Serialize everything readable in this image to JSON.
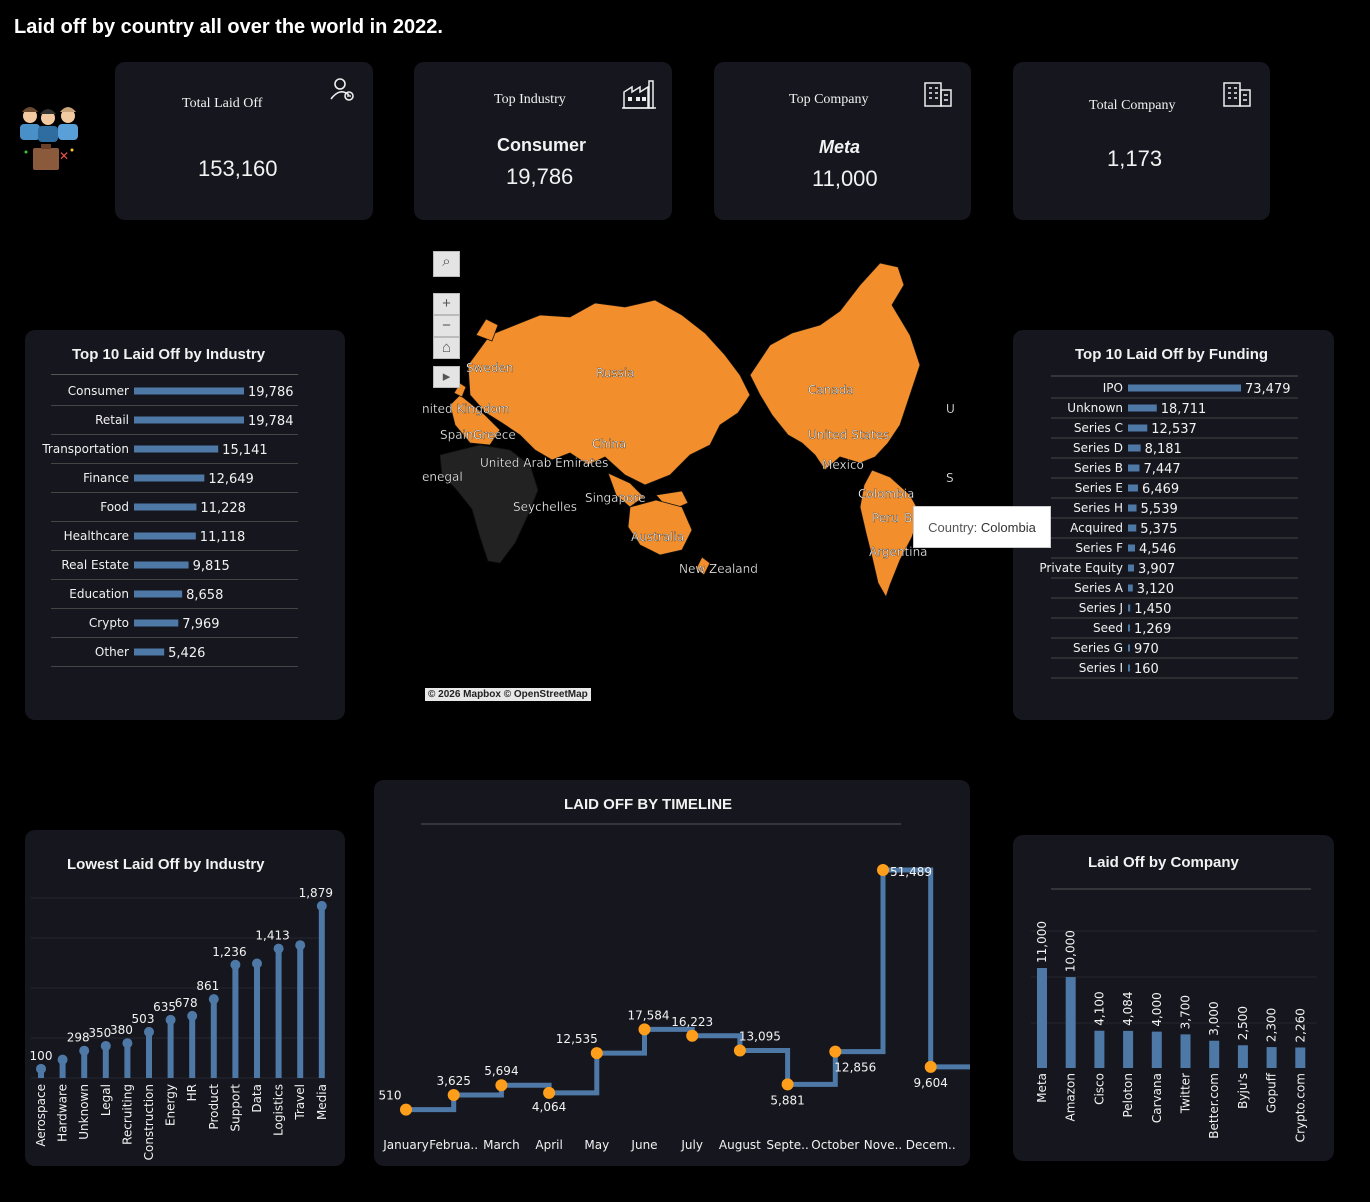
{
  "title": "Laid off by country all over the world in 2022.",
  "kpis": [
    {
      "label": "Total Laid Off",
      "sub": "",
      "value": "153,160",
      "icon": "person-icon"
    },
    {
      "label": "Top Industry",
      "sub": "Consumer",
      "value": "19,786",
      "icon": "factory-icon"
    },
    {
      "label": "Top Company",
      "sub": "Meta",
      "value": "11,000",
      "icon": "building-icon"
    },
    {
      "label": "Total Company",
      "sub": "",
      "value": "1,173",
      "icon": "building-icon"
    }
  ],
  "map": {
    "labels": [
      "Sweden",
      "Russia",
      "Canada",
      "nited Kingdom",
      "Spain",
      "Greece",
      "China",
      "United States",
      "United Arab Emirates",
      "Mexico",
      "enegal",
      "Singapore",
      "Colombia",
      "Seychelles",
      "Peru",
      "B",
      "Australia",
      "Argentina",
      "New Zealand",
      "U",
      "S"
    ],
    "tooltip_key": "Country:",
    "tooltip_value": "Colombia",
    "attribution": "© 2026 Mapbox © OpenStreetMap",
    "highlight_color": "#f28e2b"
  },
  "charts": {
    "industry": {
      "type": "bar",
      "title": "Top 10 Laid Off by Industry",
      "categories": [
        "Consumer",
        "Retail",
        "Transportation",
        "Finance",
        "Food",
        "Healthcare",
        "Real Estate",
        "Education",
        "Crypto",
        "Other"
      ],
      "values": [
        19786,
        19784,
        15141,
        12649,
        11228,
        11118,
        9815,
        8658,
        7969,
        5426
      ],
      "labels": [
        "19,786",
        "19,784",
        "15,141",
        "12,649",
        "11,228",
        "11,118",
        "9,815",
        "8,658",
        "7,969",
        "5,426"
      ],
      "orientation": "horizontal",
      "color": "#4e79a7"
    },
    "funding": {
      "type": "bar",
      "title": "Top 10 Laid Off by Funding",
      "categories": [
        "IPO",
        "Unknown",
        "Series C",
        "Series D",
        "Series B",
        "Series E",
        "Series H",
        "Acquired",
        "Series F",
        "Private Equity",
        "Series A",
        "Series J",
        "Seed",
        "Series G",
        "Series I"
      ],
      "values": [
        73479,
        18711,
        12537,
        8181,
        7447,
        6469,
        5539,
        5375,
        4546,
        3907,
        3120,
        1450,
        1269,
        970,
        160
      ],
      "labels": [
        "73,479",
        "18,711",
        "12,537",
        "8,181",
        "7,447",
        "6,469",
        "5,539",
        "5,375",
        "4,546",
        "3,907",
        "3,120",
        "1,450",
        "1,269",
        "970",
        "160"
      ],
      "orientation": "horizontal",
      "color": "#4e79a7"
    },
    "lowest": {
      "type": "bar",
      "title": "Lowest Laid Off by Industry",
      "categories": [
        "Aerospace",
        "Hardware",
        "Unknown",
        "Legal",
        "Recruiting",
        "Construction",
        "Energy",
        "HR",
        "Product",
        "Support",
        "Data",
        "Logistics",
        "Travel",
        "Media"
      ],
      "values": [
        100,
        200,
        298,
        350,
        380,
        503,
        635,
        678,
        861,
        1236,
        1250,
        1413,
        1450,
        1879
      ],
      "labels": [
        "100",
        "",
        "298",
        "350",
        "380",
        "503",
        "635",
        "678",
        "861",
        "1,236",
        "",
        "1,413",
        "",
        "1,879"
      ],
      "style": "lollipop",
      "color": "#4e79a7"
    },
    "timeline": {
      "type": "line",
      "title": "LAID OFF BY TIMELINE",
      "categories": [
        "January",
        "Februa..",
        "March",
        "April",
        "May",
        "June",
        "July",
        "August",
        "Septe..",
        "October",
        "Nove..",
        "Decem.."
      ],
      "values": [
        510,
        3625,
        5694,
        4064,
        12535,
        17584,
        16223,
        13095,
        5881,
        12856,
        51489,
        9604
      ],
      "labels": [
        "510",
        "3,625",
        "5,694",
        "4,064",
        "12,535",
        "17,584",
        "16,223",
        "13,095",
        "5,881",
        "12,856",
        "51,489",
        "9,604"
      ],
      "style": "step",
      "line_color": "#4e79a7",
      "point_color": "#ff9e1b"
    },
    "company": {
      "type": "bar",
      "title": "Laid Off by Company",
      "categories": [
        "Meta",
        "Amazon",
        "Cisco",
        "Peloton",
        "Carvana",
        "Twitter",
        "Better.com",
        "Byju's",
        "Gopuff",
        "Crypto.com"
      ],
      "values": [
        11000,
        10000,
        4100,
        4084,
        4000,
        3700,
        3000,
        2500,
        2300,
        2260
      ],
      "labels": [
        "11,000",
        "10,000",
        "4,100",
        "4,084",
        "4,000",
        "3,700",
        "3,000",
        "2,500",
        "2,300",
        "2,260"
      ],
      "orientation": "vertical",
      "color": "#4e79a7"
    }
  }
}
